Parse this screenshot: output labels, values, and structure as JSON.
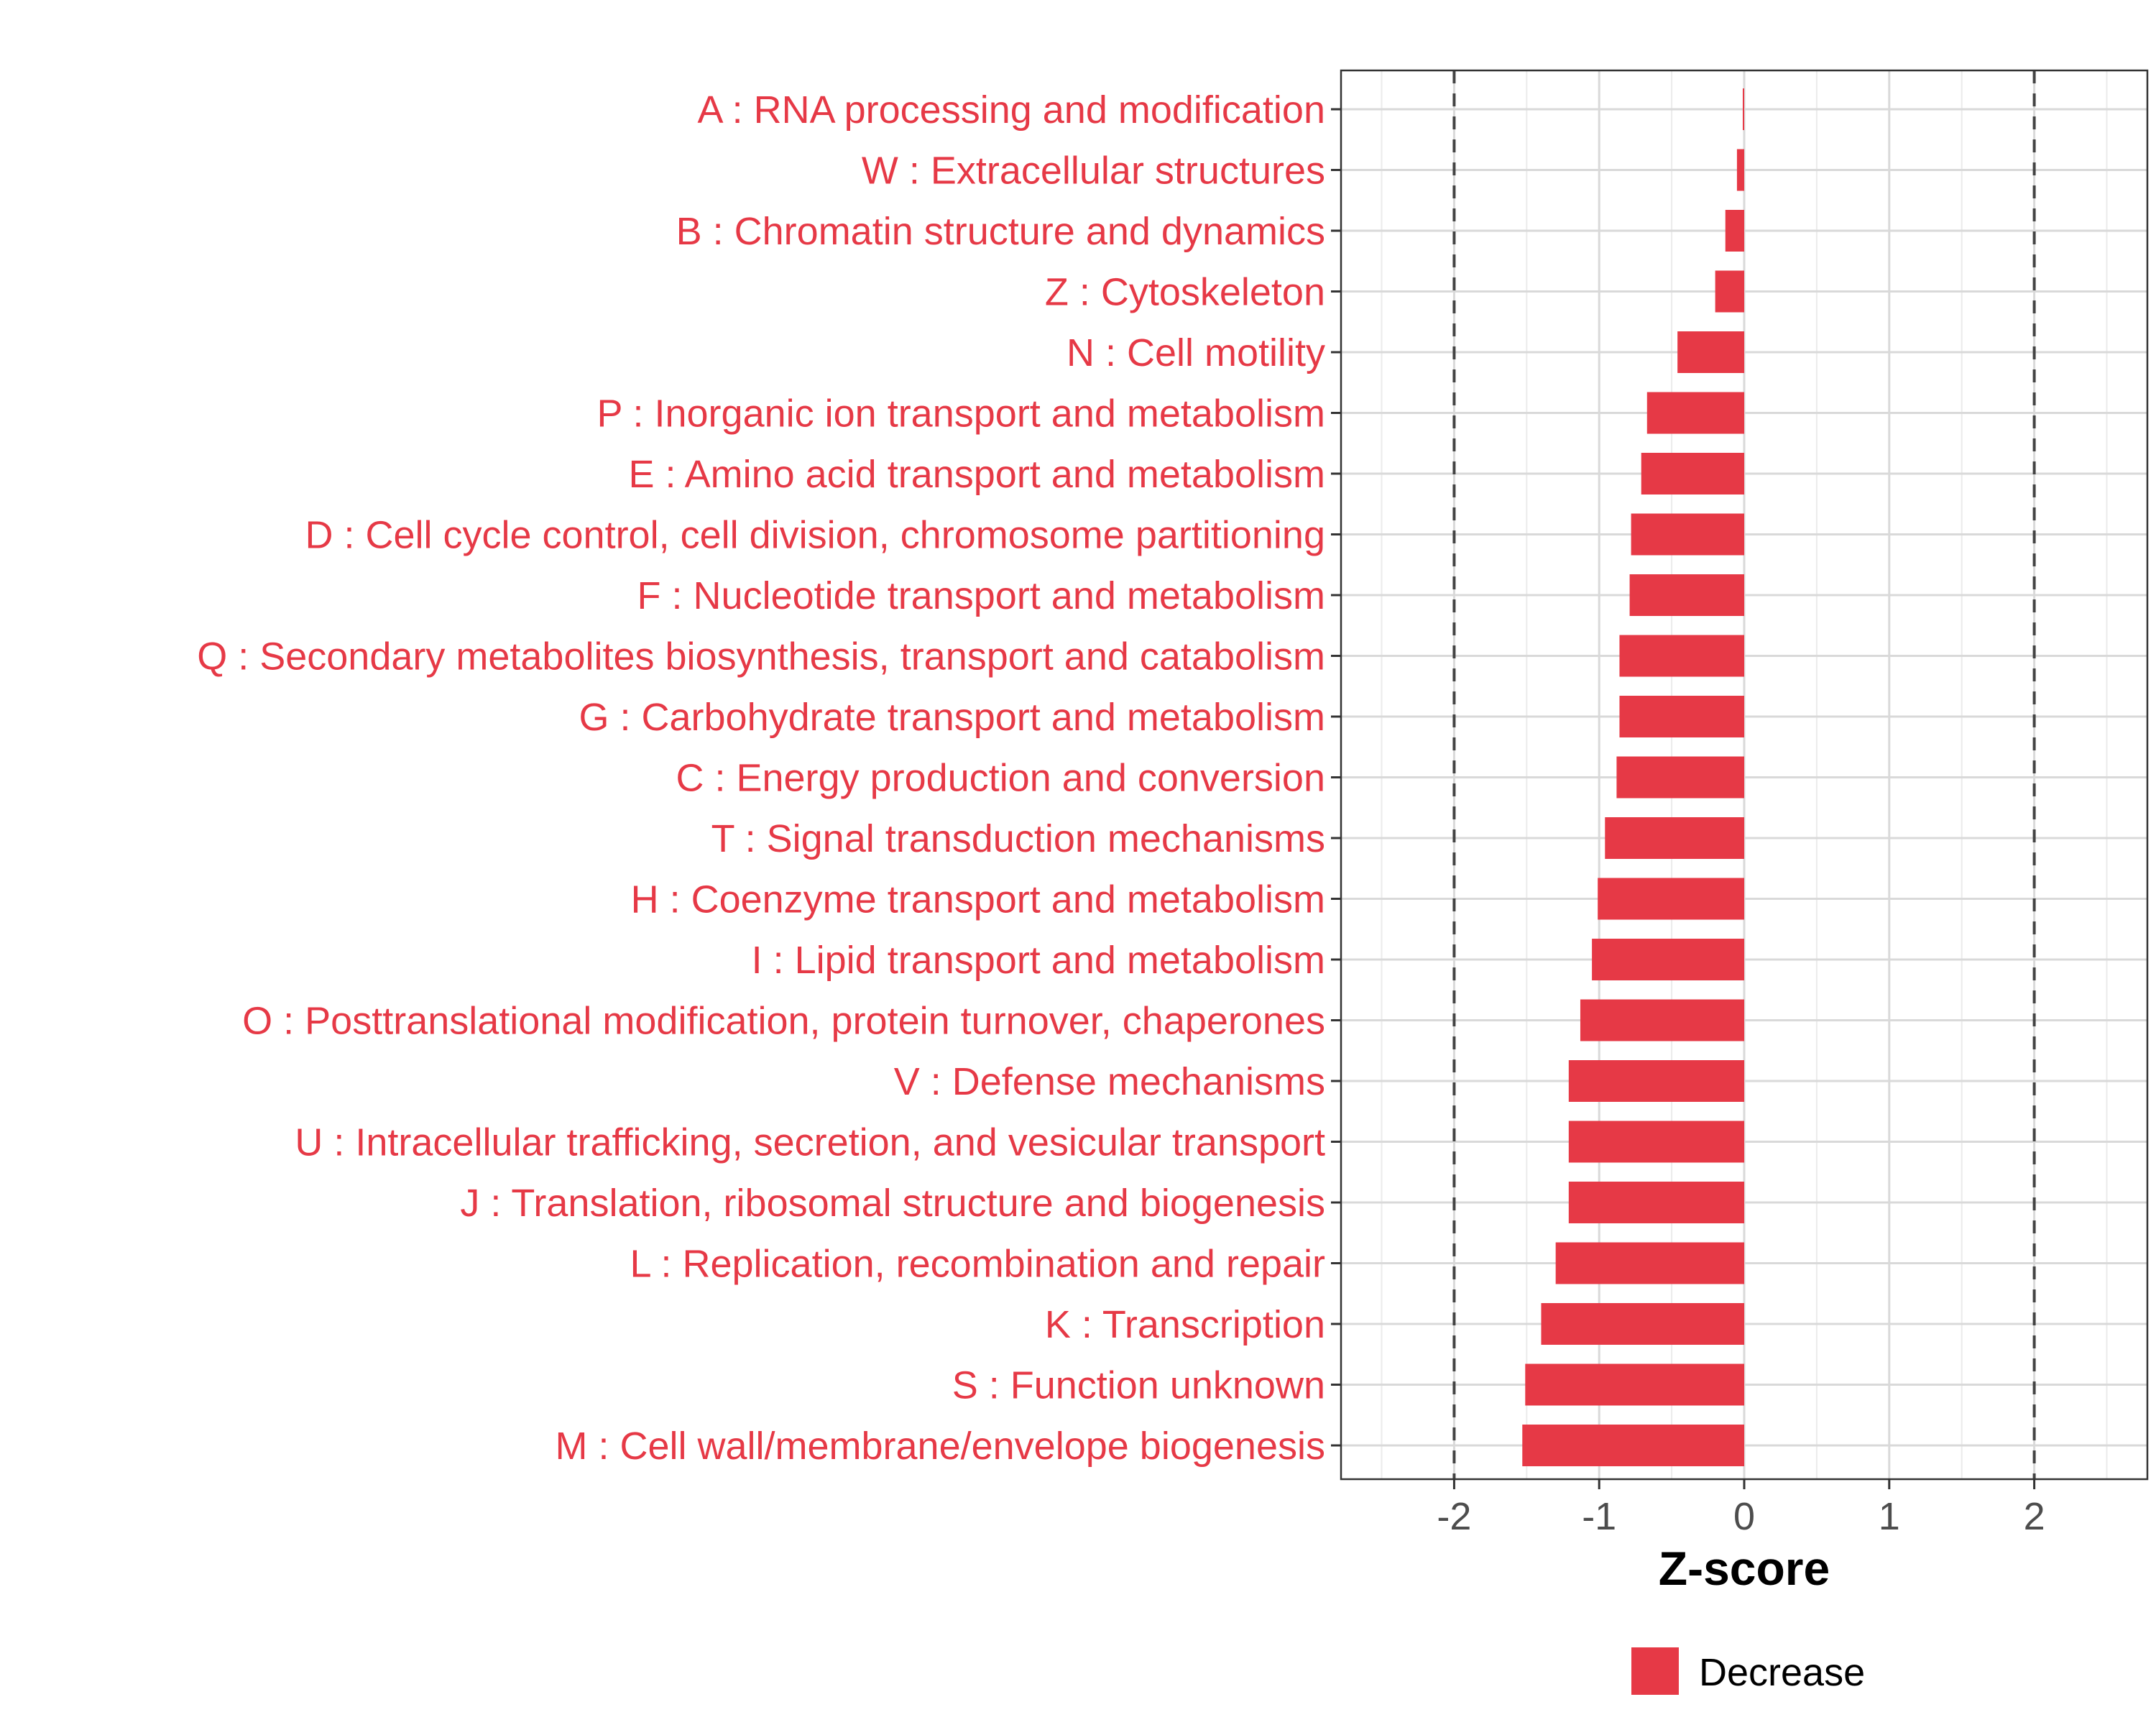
{
  "chart_data": {
    "type": "bar",
    "orientation": "horizontal",
    "categories": [
      "A : RNA processing and modification",
      "W : Extracellular structures",
      "B : Chromatin structure and dynamics",
      "Z : Cytoskeleton",
      "N : Cell motility",
      "P : Inorganic ion transport and metabolism",
      "E : Amino acid transport and metabolism",
      "D : Cell cycle control, cell division, chromosome partitioning",
      "F : Nucleotide transport and metabolism",
      "Q : Secondary metabolites biosynthesis, transport and catabolism",
      "G : Carbohydrate transport and metabolism",
      "C : Energy production and conversion",
      "T : Signal transduction mechanisms",
      "H : Coenzyme transport and metabolism",
      "I : Lipid transport and metabolism",
      "O : Posttranslational modification, protein turnover, chaperones",
      "V : Defense mechanisms",
      "U : Intracellular trafficking, secretion, and vesicular transport",
      "J : Translation, ribosomal structure and biogenesis",
      "L : Replication, recombination and repair",
      "K : Transcription",
      "S : Function unknown",
      "M : Cell wall/membrane/envelope biogenesis"
    ],
    "series": [
      {
        "name": "Decrease",
        "color": "#e63946",
        "values": [
          -0.01,
          -0.05,
          -0.13,
          -0.2,
          -0.46,
          -0.67,
          -0.71,
          -0.78,
          -0.79,
          -0.86,
          -0.86,
          -0.88,
          -0.96,
          -1.01,
          -1.05,
          -1.13,
          -1.21,
          -1.21,
          -1.21,
          -1.3,
          -1.4,
          -1.51,
          -1.53
        ]
      }
    ],
    "xlabel": "Z-score",
    "ylabel": "",
    "xlim": [
      -2.78,
      2.78
    ],
    "xticks": [
      "-2",
      "-1",
      "0",
      "1",
      "2"
    ],
    "reference_lines": [
      -2,
      2
    ],
    "grid": true,
    "legend": {
      "position": "bottom",
      "entries": [
        "Decrease"
      ]
    },
    "label_color": "#e63946"
  }
}
